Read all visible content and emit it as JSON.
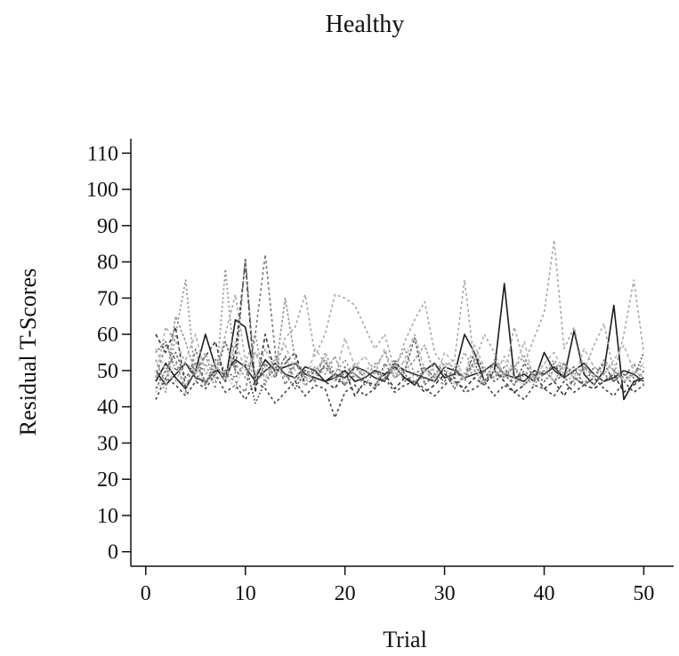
{
  "chart_data": {
    "type": "line",
    "title": "Healthy",
    "xlabel": "Trial",
    "ylabel": "Residual T-Scores",
    "xlim": [
      -1.5,
      53
    ],
    "ylim": [
      -4,
      114
    ],
    "xticks": [
      0,
      10,
      20,
      30,
      40,
      50
    ],
    "yticks": [
      0,
      10,
      20,
      30,
      40,
      50,
      60,
      70,
      80,
      90,
      100,
      110
    ],
    "grid": false,
    "legend": "none",
    "series": [
      {
        "color": "#1a1a1a",
        "dash": "none",
        "values": [
          47,
          52,
          48,
          45,
          50,
          60,
          51,
          47,
          64,
          62,
          48,
          53,
          50,
          51,
          52,
          49,
          48,
          47,
          48,
          50,
          47,
          48,
          50,
          49,
          51,
          48,
          46,
          50,
          52,
          48,
          49,
          60,
          55,
          47,
          50,
          74,
          48,
          49,
          47,
          55,
          50,
          48,
          61,
          49,
          46,
          50,
          68,
          42,
          47,
          48
        ]
      },
      {
        "color": "#2a2a2a",
        "dash": "none",
        "values": [
          50,
          46,
          49,
          52,
          48,
          47,
          50,
          49,
          53,
          51,
          47,
          50,
          52,
          49,
          48,
          51,
          50,
          47,
          49,
          48,
          51,
          50,
          48,
          47,
          52,
          50,
          49,
          48,
          47,
          51,
          50,
          48,
          49,
          50,
          52,
          49,
          48,
          47,
          50,
          49,
          51,
          48,
          50,
          52,
          49,
          47,
          48,
          50,
          49,
          47
        ]
      },
      {
        "color": "#333333",
        "dash": "4,3",
        "values": [
          60,
          55,
          62,
          45,
          50,
          54,
          58,
          47,
          55,
          80,
          44,
          60,
          49,
          52,
          55,
          46,
          48,
          47,
          45,
          50,
          43,
          47,
          46,
          49,
          45,
          48,
          47,
          44,
          46,
          49,
          47,
          45,
          48,
          46,
          50,
          47,
          44,
          46,
          49,
          45,
          47,
          43,
          48,
          46,
          45,
          47,
          49,
          44,
          46,
          48
        ]
      },
      {
        "color": "#444444",
        "dash": "3,3",
        "values": [
          42,
          48,
          46,
          43,
          47,
          45,
          49,
          44,
          46,
          42,
          47,
          45,
          41,
          44,
          47,
          43,
          46,
          45,
          37,
          44,
          46,
          43,
          45,
          48,
          44,
          46,
          47,
          45,
          43,
          46,
          48,
          44,
          45,
          47,
          43,
          46,
          44,
          42,
          46,
          45,
          43,
          47,
          44,
          46,
          48,
          45,
          43,
          47,
          44,
          46
        ]
      },
      {
        "color": "#555555",
        "dash": "2,2",
        "values": [
          55,
          58,
          50,
          52,
          49,
          46,
          53,
          50,
          48,
          52,
          41,
          47,
          51,
          49,
          45,
          50,
          47,
          52,
          49,
          46,
          51,
          48,
          50,
          47,
          53,
          49,
          46,
          51,
          48,
          50,
          45,
          49,
          52,
          47,
          50,
          48,
          51,
          46,
          49,
          47,
          50,
          52,
          48,
          46,
          51,
          49,
          47,
          50,
          48,
          55
        ]
      },
      {
        "color": "#666666",
        "dash": "3,2",
        "values": [
          45,
          50,
          55,
          48,
          52,
          47,
          49,
          58,
          50,
          81,
          46,
          52,
          48,
          54,
          47,
          50,
          49,
          51,
          48,
          46,
          49,
          47,
          45,
          52,
          48,
          50,
          59,
          46,
          49,
          47,
          51,
          48,
          55,
          50,
          47,
          49,
          46,
          52,
          48,
          50,
          47,
          49,
          51,
          46,
          48,
          52,
          47,
          49,
          46,
          50
        ]
      },
      {
        "color": "#777777",
        "dash": "3,3",
        "values": [
          48,
          57,
          53,
          44,
          56,
          46,
          51,
          49,
          47,
          44,
          60,
          82,
          55,
          46,
          52,
          48,
          50,
          53,
          47,
          51,
          49,
          46,
          50,
          48,
          52,
          47,
          49,
          51,
          48,
          46,
          50,
          47,
          53,
          49,
          48,
          51,
          46,
          50,
          47,
          49,
          52,
          48,
          46,
          51,
          49,
          47,
          50,
          48,
          52,
          46
        ]
      },
      {
        "color": "#888888",
        "dash": "2,3",
        "values": [
          50,
          44,
          60,
          75,
          47,
          52,
          45,
          78,
          49,
          52,
          60,
          46,
          54,
          48,
          52,
          50,
          47,
          55,
          49,
          53,
          48,
          50,
          52,
          47,
          51,
          56,
          49,
          47,
          52,
          50,
          48,
          55,
          50,
          47,
          52,
          49,
          51,
          48,
          46,
          50,
          53,
          49,
          47,
          51,
          48,
          52,
          50,
          47,
          49,
          51
        ]
      },
      {
        "color": "#999999",
        "dash": "3,2",
        "values": [
          53,
          46,
          65,
          58,
          49,
          54,
          47,
          50,
          52,
          48,
          55,
          51,
          49,
          70,
          53,
          48,
          51,
          49,
          54,
          46,
          52,
          49,
          51,
          55,
          48,
          50,
          53,
          57,
          49,
          52,
          51,
          48,
          50,
          46,
          53,
          49,
          51,
          54,
          48,
          50,
          47,
          52,
          49,
          51,
          48,
          53,
          50,
          47,
          49,
          52
        ]
      },
      {
        "color": "#a6a6a6",
        "dash": "3,3",
        "values": [
          48,
          62,
          58,
          52,
          50,
          55,
          49,
          60,
          71,
          53,
          48,
          56,
          50,
          59,
          62,
          71,
          54,
          60,
          71,
          70,
          68,
          62,
          56,
          60,
          50,
          58,
          64,
          69,
          55,
          51,
          53,
          75,
          52,
          60,
          55,
          48,
          62,
          52,
          59,
          66,
          86,
          56,
          62,
          50,
          57,
          63,
          49,
          60,
          75,
          55
        ]
      },
      {
        "color": "#b3b3b3",
        "dash": "4,3",
        "values": [
          56,
          50,
          47,
          53,
          60,
          49,
          52,
          47,
          58,
          50,
          55,
          48,
          53,
          57,
          50,
          46,
          56,
          52,
          48,
          59,
          51,
          54,
          49,
          56,
          48,
          53,
          60,
          50,
          47,
          55,
          52,
          49,
          57,
          51,
          48,
          54,
          50,
          58,
          47,
          52,
          55,
          50,
          48,
          56,
          51,
          49,
          53,
          57,
          50,
          48
        ]
      },
      {
        "color": "#c0c0c0",
        "dash": "2,2",
        "values": [
          44,
          48,
          52,
          46,
          50,
          47,
          51,
          49,
          45,
          53,
          50,
          47,
          49,
          52,
          48,
          46,
          50,
          54,
          47,
          49,
          52,
          48,
          46,
          51,
          49,
          53,
          47,
          50,
          48,
          52,
          46,
          49,
          51,
          47,
          50,
          53,
          48,
          46,
          49,
          52,
          47,
          51,
          48,
          50,
          46,
          49,
          52,
          47,
          50,
          48
        ]
      }
    ]
  }
}
